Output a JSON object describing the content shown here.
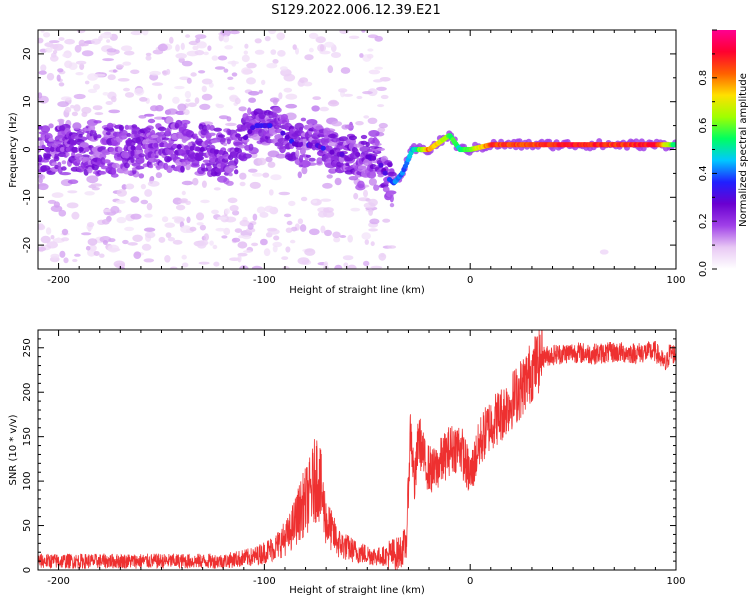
{
  "figure_title": "S129.2022.006.12.39.E21",
  "chart_data": [
    {
      "type": "heatmap",
      "xlabel": "Height of straight line (km)",
      "ylabel": "Frequency (Hz)",
      "xlim": [
        -210,
        100
      ],
      "ylim": [
        -25,
        25
      ],
      "xticks": [
        -200,
        -100,
        0,
        100
      ],
      "yticks": [
        -20,
        -10,
        0,
        10,
        20
      ],
      "colorbar": {
        "label": "Normalized spectral amplitude",
        "range": [
          0,
          1
        ],
        "ticks": [
          "0.0",
          "0.2",
          "0.4",
          "0.6",
          "0.8"
        ],
        "colors": [
          "#ffffff",
          "#e8c8f4",
          "#a040e8",
          "#6a00d0",
          "#2020ff",
          "#00c8ff",
          "#00ff60",
          "#a0ff00",
          "#ffe000",
          "#ff6000",
          "#ff0030",
          "#ff0090"
        ]
      },
      "ridge": {
        "x": [
          -210,
          -190,
          -170,
          -150,
          -130,
          -115,
          -105,
          -95,
          -85,
          -75,
          -65,
          -55,
          -45,
          -40,
          -37,
          -33,
          -28,
          -20,
          -10,
          -5,
          0,
          10,
          30,
          50,
          70,
          90,
          100
        ],
        "freq": [
          0,
          0,
          0,
          1,
          0,
          -1,
          5,
          5,
          1,
          1,
          -1,
          -1,
          -2,
          -6,
          -7,
          -5,
          0,
          0,
          3,
          0,
          0,
          1,
          1,
          1,
          1,
          1,
          1
        ],
        "peak_amplitude": [
          0.18,
          0.2,
          0.2,
          0.2,
          0.22,
          0.2,
          0.3,
          0.35,
          0.3,
          0.32,
          0.3,
          0.25,
          0.25,
          0.3,
          0.4,
          0.4,
          0.45,
          0.8,
          0.6,
          0.5,
          0.6,
          0.85,
          0.85,
          0.9,
          0.85,
          0.9,
          0.5
        ]
      }
    },
    {
      "type": "line",
      "xlabel": "Height of straight line (km)",
      "ylabel": "SNR (10 * v/v)",
      "xlim": [
        -210,
        100
      ],
      "ylim": [
        0,
        270
      ],
      "xticks": [
        -200,
        -100,
        0,
        100
      ],
      "yticks": [
        0,
        50,
        100,
        150,
        200,
        250
      ],
      "line_color": "#ee3030",
      "series": [
        {
          "x": [
            -210,
            -180,
            -150,
            -120,
            -105,
            -95,
            -88,
            -82,
            -78,
            -74,
            -70,
            -64,
            -55,
            -45,
            -35,
            -31,
            -29,
            -27,
            -25,
            -22,
            -18,
            -10,
            -5,
            0,
            5,
            10,
            15,
            20,
            25,
            30,
            35,
            40,
            50,
            60,
            70,
            80,
            90,
            95,
            97,
            100
          ],
          "y": [
            10,
            10,
            10,
            10,
            15,
            25,
            40,
            70,
            85,
            110,
            55,
            30,
            20,
            15,
            18,
            30,
            160,
            95,
            150,
            120,
            110,
            135,
            140,
            105,
            145,
            165,
            175,
            190,
            205,
            225,
            240,
            242,
            245,
            243,
            245,
            244,
            246,
            230,
            245,
            242
          ]
        }
      ]
    }
  ]
}
